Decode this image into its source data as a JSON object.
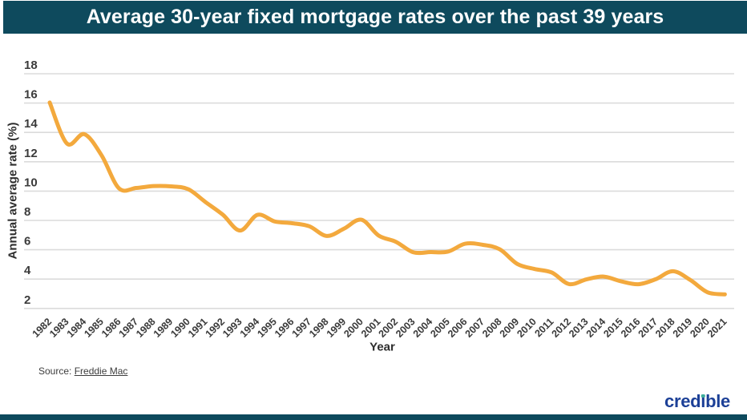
{
  "header": {
    "title": "Average 30-year fixed mortgage rates over the past 39 years"
  },
  "chart_data": {
    "type": "line",
    "title": "Average 30-year fixed mortgage rates over the past 39 years",
    "xlabel": "Year",
    "ylabel": "Annual average rate (%)",
    "categories": [
      "1982",
      "1983",
      "1984",
      "1985",
      "1986",
      "1987",
      "1988",
      "1989",
      "1990",
      "1991",
      "1992",
      "1993",
      "1994",
      "1995",
      "1996",
      "1997",
      "1998",
      "1999",
      "2000",
      "2001",
      "2002",
      "2003",
      "2004",
      "2005",
      "2006",
      "2007",
      "2008",
      "2009",
      "2010",
      "2011",
      "2012",
      "2013",
      "2014",
      "2015",
      "2016",
      "2017",
      "2018",
      "2019",
      "2020",
      "2021"
    ],
    "values": [
      16.04,
      13.24,
      13.88,
      12.43,
      10.19,
      10.21,
      10.34,
      10.32,
      10.13,
      9.25,
      8.39,
      7.31,
      8.38,
      7.93,
      7.81,
      7.6,
      6.94,
      7.44,
      8.05,
      6.97,
      6.54,
      5.83,
      5.84,
      5.87,
      6.41,
      6.34,
      6.03,
      5.04,
      4.69,
      4.45,
      3.66,
      3.98,
      4.17,
      3.85,
      3.65,
      3.99,
      4.54,
      3.94,
      3.1,
      2.96
    ],
    "yticks": [
      18,
      16,
      14,
      12,
      10,
      8,
      6,
      4,
      2
    ],
    "ylim": [
      2,
      18
    ],
    "grid": "horizontal",
    "legend": "none"
  },
  "footer": {
    "source_prefix": "Source:",
    "source_link": "Freddie Mac",
    "logo_text": "credible"
  },
  "colors": {
    "banner": "#0E4A5D",
    "line": "#F3A93D",
    "gridline": "#DBDBDB",
    "tick_text": "#3B3B3B",
    "logo_navy": "#1C4097",
    "logo_dot": "#3FAE9C"
  }
}
